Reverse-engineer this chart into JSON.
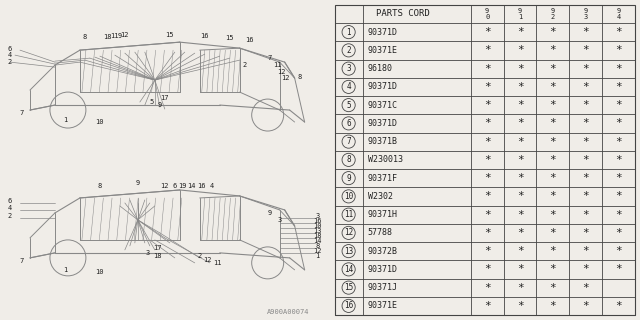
{
  "table_header": "PARTS CORD",
  "col_headers": [
    "9\n0",
    "9\n1",
    "9\n2",
    "9\n3",
    "9\n4"
  ],
  "rows": [
    {
      "num": "1",
      "part": "90371D",
      "marks": [
        true,
        true,
        true,
        true,
        true
      ]
    },
    {
      "num": "2",
      "part": "90371E",
      "marks": [
        true,
        true,
        true,
        true,
        true
      ]
    },
    {
      "num": "3",
      "part": "96180",
      "marks": [
        true,
        true,
        true,
        true,
        true
      ]
    },
    {
      "num": "4",
      "part": "90371D",
      "marks": [
        true,
        true,
        true,
        true,
        true
      ]
    },
    {
      "num": "5",
      "part": "90371C",
      "marks": [
        true,
        true,
        true,
        true,
        true
      ]
    },
    {
      "num": "6",
      "part": "90371D",
      "marks": [
        true,
        true,
        true,
        true,
        true
      ]
    },
    {
      "num": "7",
      "part": "90371B",
      "marks": [
        true,
        true,
        true,
        true,
        true
      ]
    },
    {
      "num": "8",
      "part": "W230013",
      "marks": [
        true,
        true,
        true,
        true,
        true
      ]
    },
    {
      "num": "9",
      "part": "90371F",
      "marks": [
        true,
        true,
        true,
        true,
        true
      ]
    },
    {
      "num": "10",
      "part": "W2302",
      "marks": [
        true,
        true,
        true,
        true,
        true
      ]
    },
    {
      "num": "11",
      "part": "90371H",
      "marks": [
        true,
        true,
        true,
        true,
        true
      ]
    },
    {
      "num": "12",
      "part": "57788",
      "marks": [
        true,
        true,
        true,
        true,
        true
      ]
    },
    {
      "num": "13",
      "part": "90372B",
      "marks": [
        true,
        true,
        true,
        true,
        true
      ]
    },
    {
      "num": "14",
      "part": "90371D",
      "marks": [
        true,
        true,
        true,
        true,
        true
      ]
    },
    {
      "num": "15",
      "part": "90371J",
      "marks": [
        true,
        true,
        true,
        true,
        false
      ]
    },
    {
      "num": "16",
      "part": "90371E",
      "marks": [
        true,
        true,
        true,
        true,
        true
      ]
    }
  ],
  "watermark": "A900A00074",
  "bg_color": "#f0ede8",
  "line_color": "#888888",
  "text_color": "#222222",
  "table_bg": "#f0ede8",
  "table_line_color": "#444444"
}
